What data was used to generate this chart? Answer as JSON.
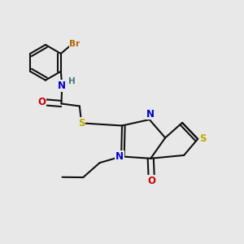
{
  "bg_color": "#e8e8e8",
  "colors": {
    "bond": "#111111",
    "Br": "#b36200",
    "N": "#0000cc",
    "O": "#cc0000",
    "S": "#bbaa00",
    "H": "#447777",
    "C": "#111111"
  },
  "lw": 1.5,
  "dbo": 0.012,
  "fs": 8.5,
  "fss": 7.0,
  "figsize": [
    3.0,
    3.0
  ],
  "dpi": 100
}
